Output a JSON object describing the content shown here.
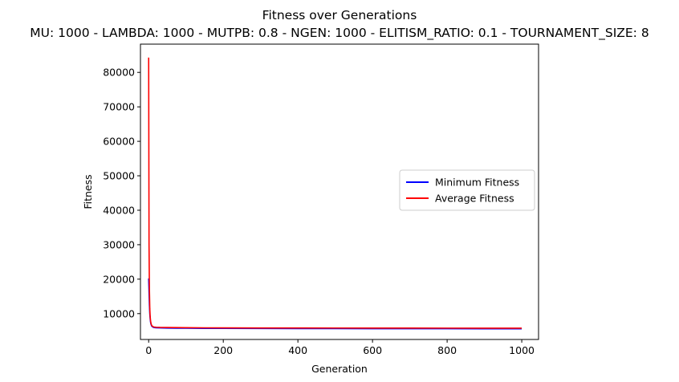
{
  "chart_data": {
    "type": "line",
    "title": "Fitness over Generations",
    "subtitle": "MU: 1000 - LAMBDA: 1000 - MUTPB: 0.8 - NGEN: 1000 - ELITISM_RATIO: 0.1 - TOURNAMENT_SIZE: 8",
    "xlabel": "Generation",
    "ylabel": "Fitness",
    "ylabel_color": "#0000ff",
    "xlim": [
      -22,
      1045
    ],
    "ylim": [
      2500,
      88200
    ],
    "xticks": [
      0,
      200,
      400,
      600,
      800,
      1000
    ],
    "yticks": [
      10000,
      20000,
      30000,
      40000,
      50000,
      60000,
      70000,
      80000
    ],
    "legend_position": "center-right",
    "grid": false,
    "series": [
      {
        "name": "Minimum Fitness",
        "color": "#0000ff",
        "x": [
          0,
          1,
          2,
          3,
          4,
          5,
          6,
          7,
          8,
          10,
          12,
          15,
          20,
          30,
          50,
          75,
          100,
          150,
          200,
          300,
          400,
          500,
          600,
          700,
          800,
          900,
          1000
        ],
        "y": [
          20200,
          16200,
          12500,
          10000,
          8500,
          7600,
          7000,
          6700,
          6400,
          6200,
          6050,
          5950,
          5900,
          5850,
          5800,
          5780,
          5760,
          5720,
          5700,
          5680,
          5660,
          5650,
          5640,
          5630,
          5620,
          5610,
          5600
        ]
      },
      {
        "name": "Average Fitness",
        "color": "#ff0000",
        "x": [
          0,
          1,
          2,
          3,
          4,
          5,
          6,
          7,
          8,
          10,
          12,
          15,
          20,
          30,
          50,
          75,
          100,
          150,
          200,
          300,
          400,
          500,
          600,
          700,
          800,
          900,
          1000
        ],
        "y": [
          84300,
          30000,
          17000,
          11500,
          9200,
          8000,
          7300,
          6900,
          6600,
          6350,
          6200,
          6100,
          6050,
          6000,
          5980,
          5950,
          5920,
          5880,
          5860,
          5840,
          5830,
          5820,
          5810,
          5800,
          5790,
          5780,
          5770
        ]
      }
    ]
  }
}
